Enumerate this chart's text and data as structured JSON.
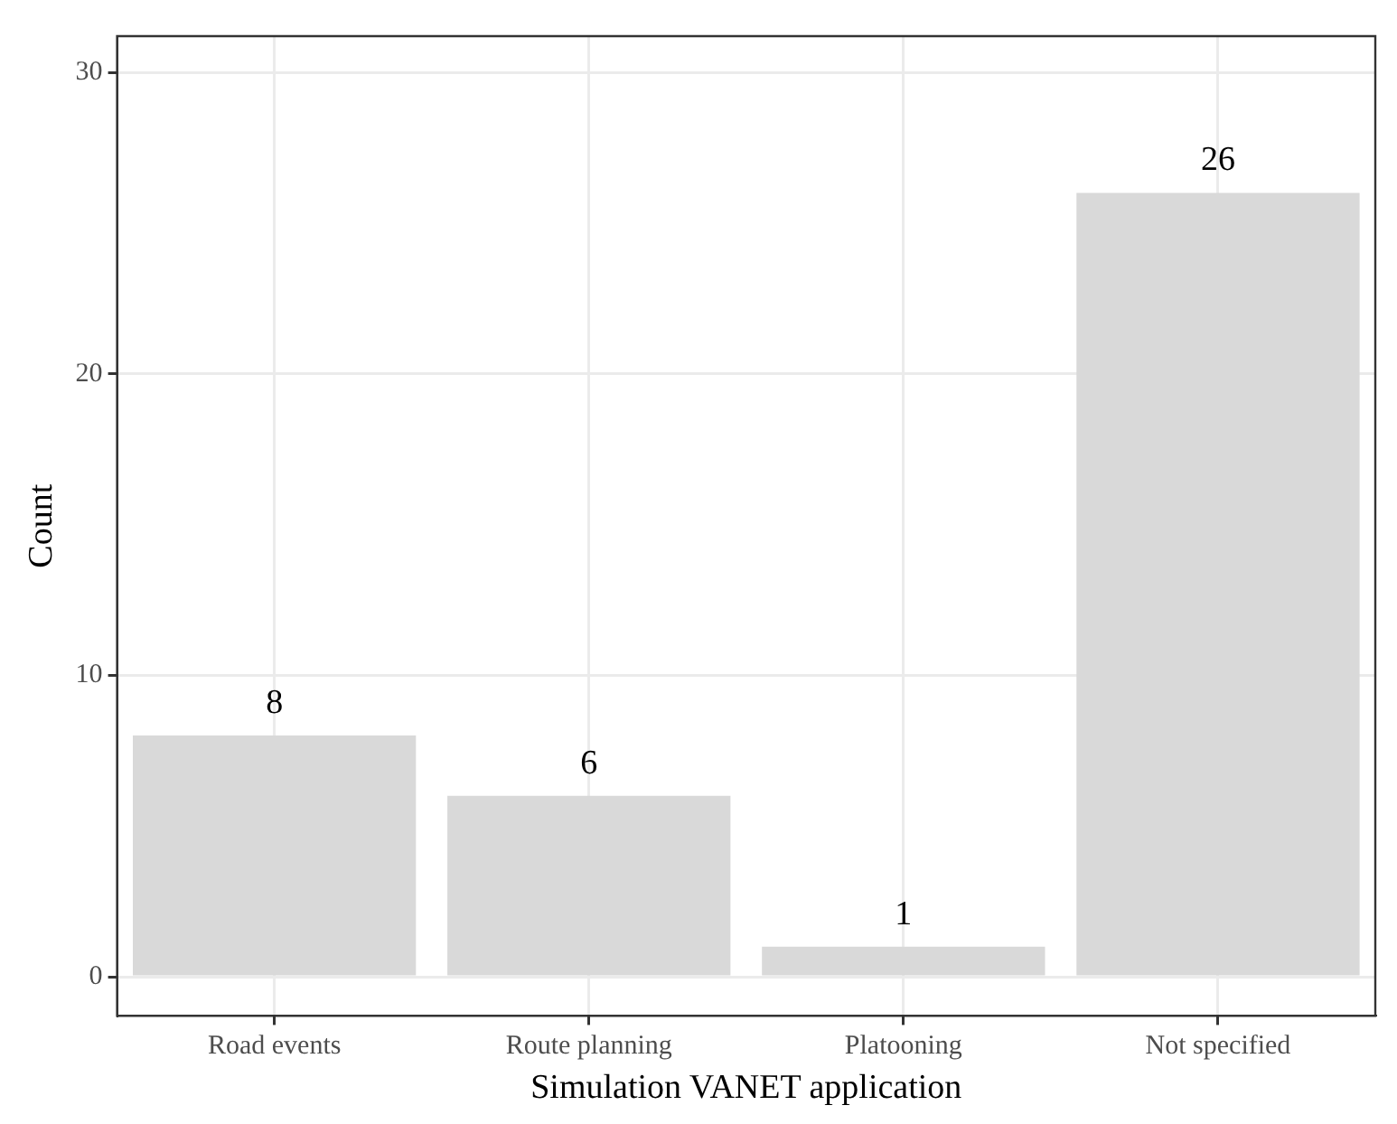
{
  "chart_data": {
    "type": "bar",
    "xlabel": "Simulation VANET application",
    "ylabel": "Count",
    "categories": [
      "Road events",
      "Route planning",
      "Platooning",
      "Not specified"
    ],
    "values": [
      8,
      6,
      1,
      26
    ],
    "color": "#d9d9d9",
    "ylim": [
      -1.3,
      31.2
    ],
    "yticks": [
      0,
      10,
      20,
      30
    ],
    "grid": true,
    "data_labels": true,
    "legend": false
  }
}
